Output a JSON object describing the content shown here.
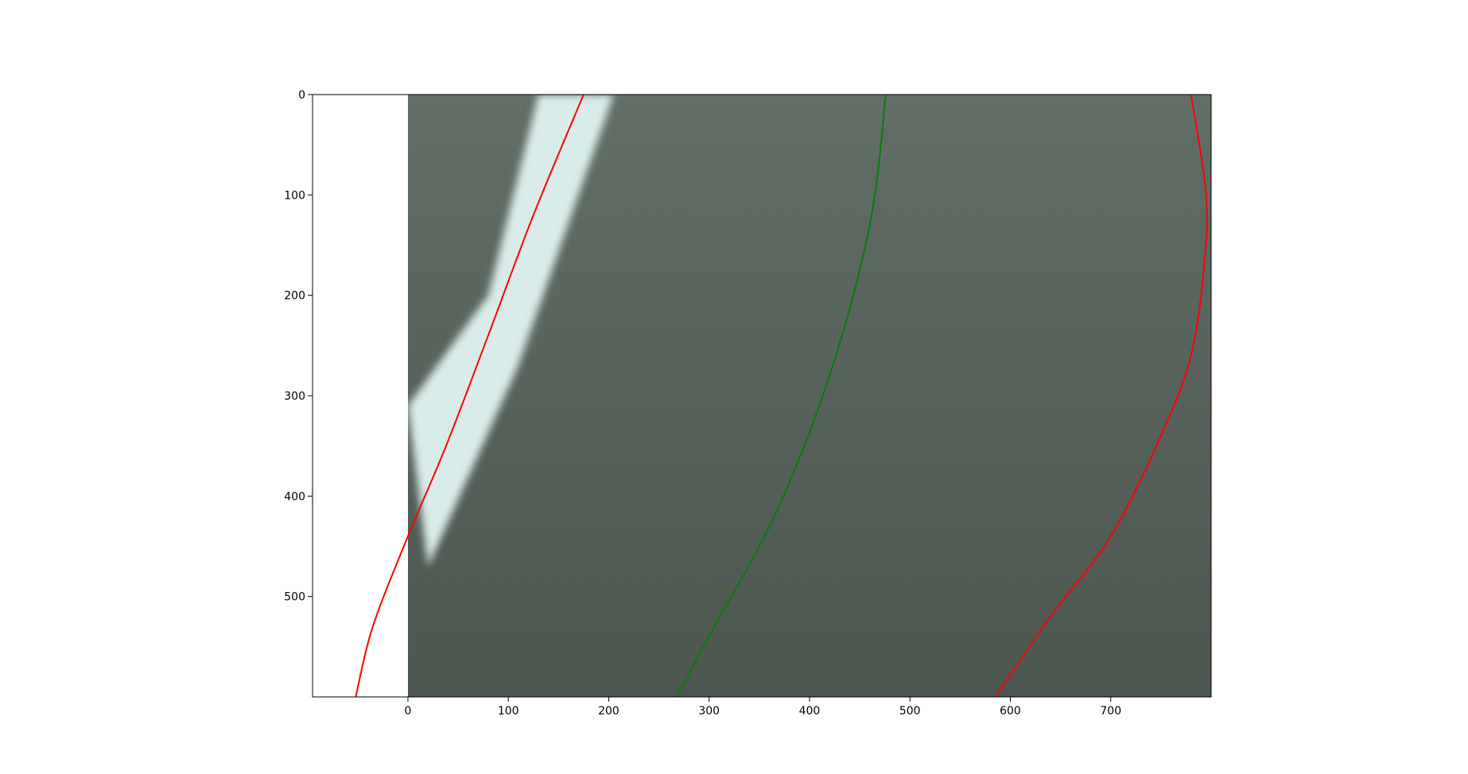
{
  "chart_data": {
    "type": "image",
    "xlim": [
      -95,
      800
    ],
    "ylim": [
      600,
      0
    ],
    "image_extent": {
      "x": [
        0,
        800
      ],
      "y": [
        0,
        600
      ]
    },
    "x_ticks": [
      0,
      100,
      200,
      300,
      400,
      500,
      600,
      700
    ],
    "y_ticks": [
      0,
      100,
      200,
      300,
      400,
      500
    ],
    "grid": false,
    "background_image": {
      "description": "blurred grey-green road surface with a white lane marking on the left",
      "colors": {
        "road_top": "#616e66",
        "road_bottom": "#4b564f",
        "marking": "#d9ece9"
      },
      "lane_marking": {
        "left_edge": [
          [
            130,
            0
          ],
          [
            80,
            200
          ],
          [
            0,
            310
          ]
        ],
        "right_edge": [
          [
            205,
            0
          ],
          [
            110,
            270
          ],
          [
            20,
            470
          ]
        ]
      }
    },
    "series": [
      {
        "color": "#ff0000",
        "points": [
          [
            175,
            0
          ],
          [
            125,
            120
          ],
          [
            80,
            240
          ],
          [
            38,
            350
          ],
          [
            0,
            440
          ],
          [
            -35,
            530
          ],
          [
            -52,
            600
          ]
        ]
      },
      {
        "color": "#008000",
        "points": [
          [
            476,
            0
          ],
          [
            460,
            130
          ],
          [
            420,
            280
          ],
          [
            365,
            420
          ],
          [
            305,
            530
          ],
          [
            268,
            600
          ]
        ]
      },
      {
        "color": "#ff0000",
        "points": [
          [
            780,
            0
          ],
          [
            795,
            100
          ],
          [
            793,
            170
          ],
          [
            780,
            260
          ],
          [
            750,
            340
          ],
          [
            700,
            440
          ],
          [
            640,
            520
          ],
          [
            585,
            600
          ]
        ]
      }
    ]
  }
}
